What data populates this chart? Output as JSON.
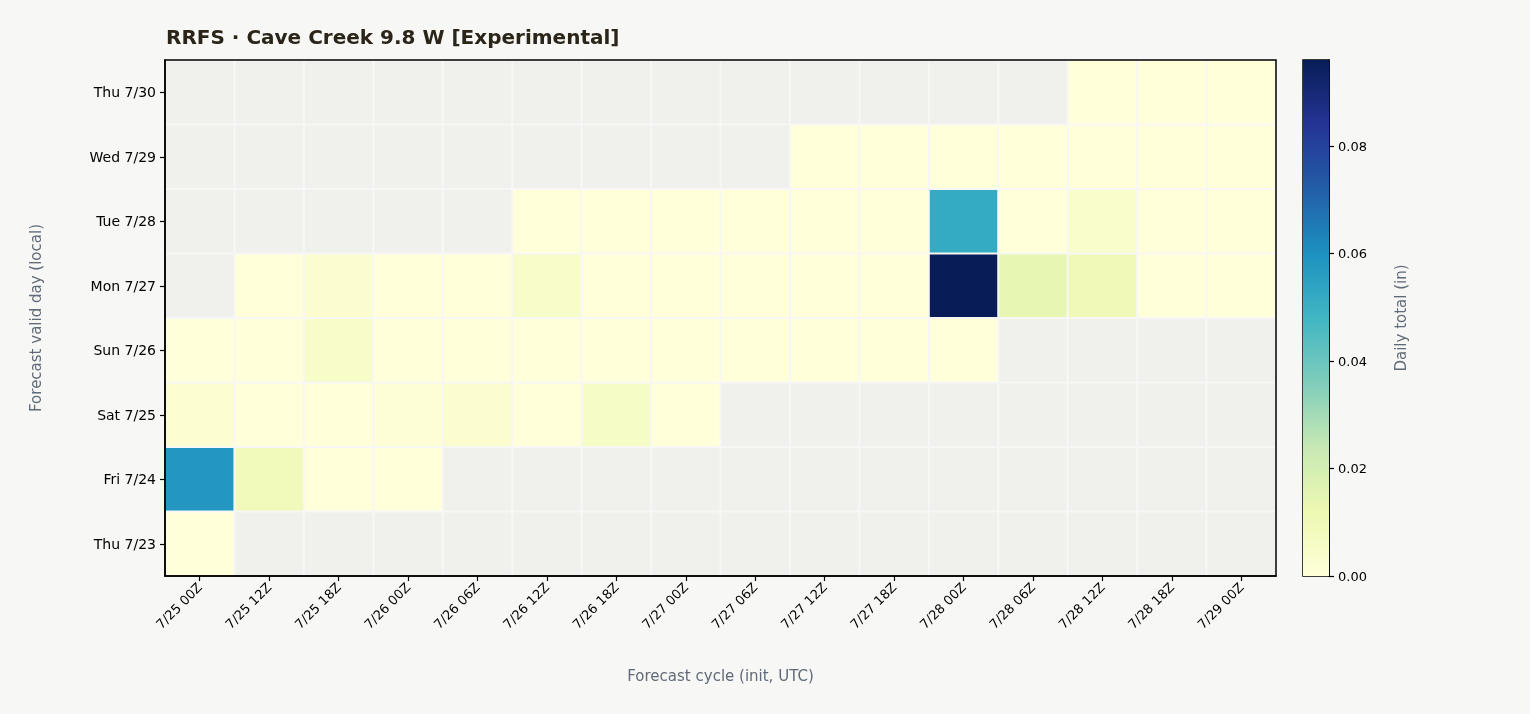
{
  "chart_data": {
    "type": "heatmap",
    "title": "RRFS · Cave Creek 9.8 W [Experimental]",
    "xlabel": "Forecast cycle (init, UTC)",
    "ylabel": "Forecast valid day (local)",
    "clabel": "Daily total (in)",
    "categories": [
      "7/25 00Z",
      "7/25 12Z",
      "7/25 18Z",
      "7/26 00Z",
      "7/26 06Z",
      "7/26 12Z",
      "7/26 18Z",
      "7/27 00Z",
      "7/27 06Z",
      "7/27 12Z",
      "7/27 18Z",
      "7/28 00Z",
      "7/28 06Z",
      "7/28 12Z",
      "7/28 18Z",
      "7/29 00Z"
    ],
    "y_categories": [
      "Thu 7/30",
      "Wed 7/29",
      "Tue 7/28",
      "Mon 7/27",
      "Sun 7/26",
      "Sat 7/25",
      "Fri 7/24",
      "Thu 7/23"
    ],
    "cells": [
      [
        null,
        null,
        null,
        null,
        null,
        null,
        null,
        null,
        null,
        null,
        null,
        null,
        null,
        0,
        0,
        0
      ],
      [
        null,
        null,
        null,
        null,
        null,
        null,
        null,
        null,
        null,
        0,
        0,
        0,
        0,
        0,
        0,
        0
      ],
      [
        null,
        null,
        null,
        null,
        null,
        0,
        0,
        0,
        0,
        0,
        0,
        0.052,
        0,
        0.004,
        0,
        0
      ],
      [
        null,
        0,
        0.003,
        0,
        0,
        0.005,
        0,
        0,
        0,
        0,
        0,
        0.096,
        0.014,
        0.01,
        0,
        0
      ],
      [
        0,
        0,
        0.005,
        0,
        0,
        0,
        0,
        0,
        0,
        0,
        0,
        0,
        null,
        null,
        null,
        null
      ],
      [
        0.002,
        0,
        0,
        0.001,
        0.003,
        0,
        0.006,
        0,
        null,
        null,
        null,
        null,
        null,
        null,
        null,
        null
      ],
      [
        0.058,
        0.009,
        0,
        0,
        null,
        null,
        null,
        null,
        null,
        null,
        null,
        null,
        null,
        null,
        null,
        null
      ],
      [
        0,
        null,
        null,
        null,
        null,
        null,
        null,
        null,
        null,
        null,
        null,
        null,
        null,
        null,
        null,
        null
      ]
    ],
    "clim": [
      0,
      0.096
    ],
    "cticks": [
      {
        "value": 0,
        "label": "0.00"
      },
      {
        "value": 0.02,
        "label": "0.02"
      },
      {
        "value": 0.04,
        "label": "0.04"
      },
      {
        "value": 0.06,
        "label": "0.06"
      },
      {
        "value": 0.08,
        "label": "0.08"
      }
    ]
  }
}
